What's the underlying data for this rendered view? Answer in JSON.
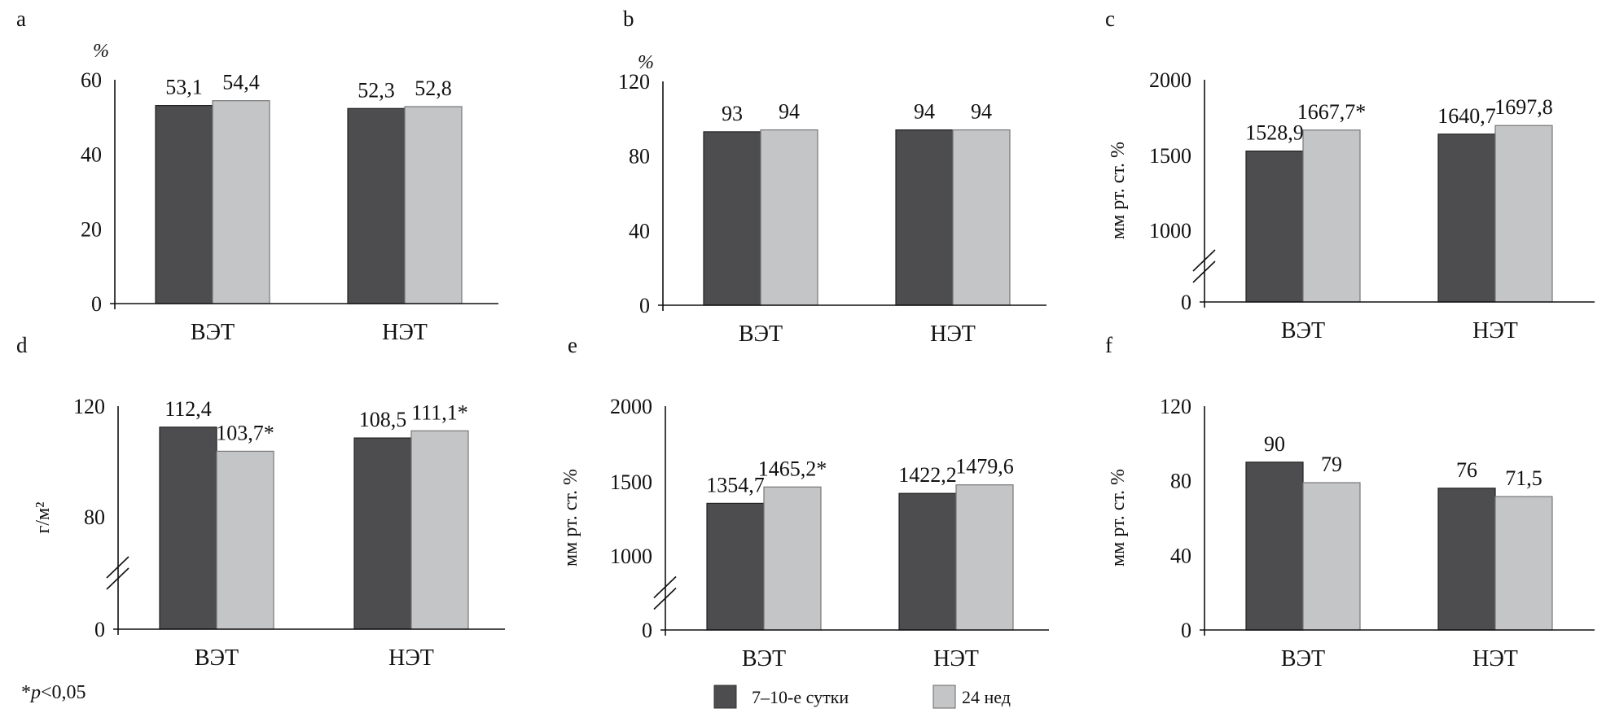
{
  "figure": {
    "footnote": {
      "prefix": "*",
      "p": "p",
      "rest": "<0,05"
    },
    "legend": [
      {
        "label": "7–10-е сутки",
        "color": "#4d4d4f"
      },
      {
        "label": "24 нед",
        "color": "#c4c5c7"
      }
    ]
  },
  "chart_data": [
    {
      "panel": "a",
      "type": "bar",
      "ylabel": "%",
      "ylabel_orientation": "horizontal",
      "categories": [
        "ВЭТ",
        "НЭТ"
      ],
      "ylim": [
        0,
        60
      ],
      "yticks": [
        "0",
        "20",
        "40",
        "60"
      ],
      "ytick_values": [
        0,
        20,
        40,
        60
      ],
      "axis_break": false,
      "series": [
        {
          "name": "7–10-е сутки",
          "values": [
            53.1,
            52.3
          ],
          "labels": [
            "53,1",
            "52,3"
          ]
        },
        {
          "name": "24 нед",
          "values": [
            54.4,
            52.8
          ],
          "labels": [
            "54,4",
            "52,8"
          ]
        }
      ]
    },
    {
      "panel": "b",
      "type": "bar",
      "ylabel": "%",
      "ylabel_orientation": "horizontal",
      "categories": [
        "ВЭТ",
        "НЭТ"
      ],
      "ylim": [
        0,
        120
      ],
      "yticks": [
        "0",
        "40",
        "80",
        "120"
      ],
      "ytick_values": [
        0,
        40,
        80,
        120
      ],
      "axis_break": false,
      "series": [
        {
          "name": "7–10-е сутки",
          "values": [
            93,
            94
          ],
          "labels": [
            "93",
            "94"
          ]
        },
        {
          "name": "24 нед",
          "values": [
            94,
            94
          ],
          "labels": [
            "94",
            "94"
          ]
        }
      ]
    },
    {
      "panel": "c",
      "type": "bar",
      "ylabel": "мм рт. ст. %",
      "ylabel_orientation": "vertical",
      "categories": [
        "ВЭТ",
        "НЭТ"
      ],
      "ylim": [
        0,
        2000
      ],
      "yticks": [
        "0",
        "1000",
        "1500",
        "2000"
      ],
      "ytick_values": [
        0,
        1000,
        1500,
        2000
      ],
      "axis_break": true,
      "series": [
        {
          "name": "7–10-е сутки",
          "values": [
            1528.9,
            1640.7
          ],
          "labels": [
            "1528,9",
            "1640,7"
          ]
        },
        {
          "name": "24 нед",
          "values": [
            1667.7,
            1697.8
          ],
          "labels": [
            "1667,7*",
            "1697,8"
          ]
        }
      ]
    },
    {
      "panel": "d",
      "type": "bar",
      "ylabel": "г/м²",
      "ylabel_orientation": "vertical",
      "categories": [
        "ВЭТ",
        "НЭТ"
      ],
      "ylim": [
        0,
        120
      ],
      "yticks": [
        "0",
        "80",
        "120"
      ],
      "ytick_values": [
        0,
        80,
        120
      ],
      "axis_break": true,
      "series": [
        {
          "name": "7–10-е сутки",
          "values": [
            112.4,
            108.5
          ],
          "labels": [
            "112,4",
            "108,5"
          ]
        },
        {
          "name": "24 нед",
          "values": [
            103.7,
            111.1
          ],
          "labels": [
            "103,7*",
            "111,1*"
          ]
        }
      ]
    },
    {
      "panel": "e",
      "type": "bar",
      "ylabel": "мм рт. ст. %",
      "ylabel_orientation": "vertical",
      "categories": [
        "ВЭТ",
        "НЭТ"
      ],
      "ylim": [
        0,
        2000
      ],
      "yticks": [
        "0",
        "1000",
        "1500",
        "2000"
      ],
      "ytick_values": [
        0,
        1000,
        1500,
        2000
      ],
      "axis_break": true,
      "series": [
        {
          "name": "7–10-е сутки",
          "values": [
            1354.7,
            1422.2
          ],
          "labels": [
            "1354,7",
            "1422,2"
          ]
        },
        {
          "name": "24 нед",
          "values": [
            1465.2,
            1479.6
          ],
          "labels": [
            "1465,2*",
            "1479,6"
          ]
        }
      ]
    },
    {
      "panel": "f",
      "type": "bar",
      "ylabel": "мм рт. ст. %",
      "ylabel_orientation": "vertical",
      "categories": [
        "ВЭТ",
        "НЭТ"
      ],
      "ylim": [
        0,
        120
      ],
      "yticks": [
        "0",
        "40",
        "80",
        "120"
      ],
      "ytick_values": [
        0,
        40,
        80,
        120
      ],
      "axis_break": false,
      "series": [
        {
          "name": "7–10-е сутки",
          "values": [
            90,
            76
          ],
          "labels": [
            "90",
            "76"
          ]
        },
        {
          "name": "24 нед",
          "values": [
            79,
            71.5
          ],
          "labels": [
            "79",
            "71,5"
          ]
        }
      ]
    }
  ]
}
